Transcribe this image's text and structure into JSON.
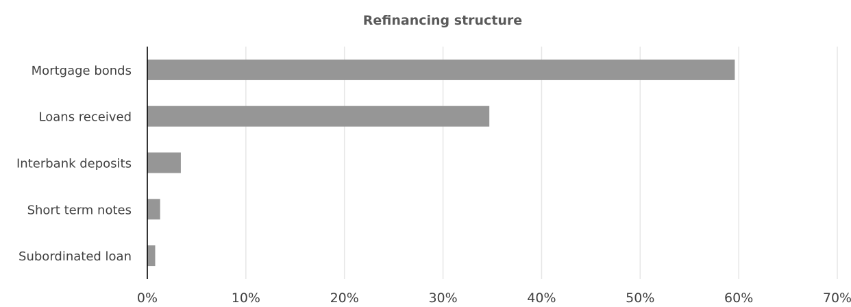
{
  "chart_data": {
    "type": "bar",
    "orientation": "horizontal",
    "title": "Refinancing structure",
    "categories": [
      "Mortgage bonds",
      "Loans received",
      "Interbank deposits",
      "Short term notes",
      "Subordinated loan"
    ],
    "values": [
      0.596,
      0.347,
      0.034,
      0.013,
      0.008
    ],
    "xlim": [
      0,
      0.7
    ],
    "xticks": [
      0,
      0.1,
      0.2,
      0.3,
      0.4,
      0.5,
      0.6,
      0.7
    ],
    "xtick_labels": [
      "0%",
      "10%",
      "20%",
      "30%",
      "40%",
      "50%",
      "60%",
      "70%"
    ],
    "xlabel": "",
    "ylabel": "",
    "grid": true,
    "legend": "none",
    "colors": {
      "bar": "#969696",
      "grid": "#e6e6e6",
      "axis": "#000000",
      "text": "#404040",
      "title": "#595959"
    }
  }
}
